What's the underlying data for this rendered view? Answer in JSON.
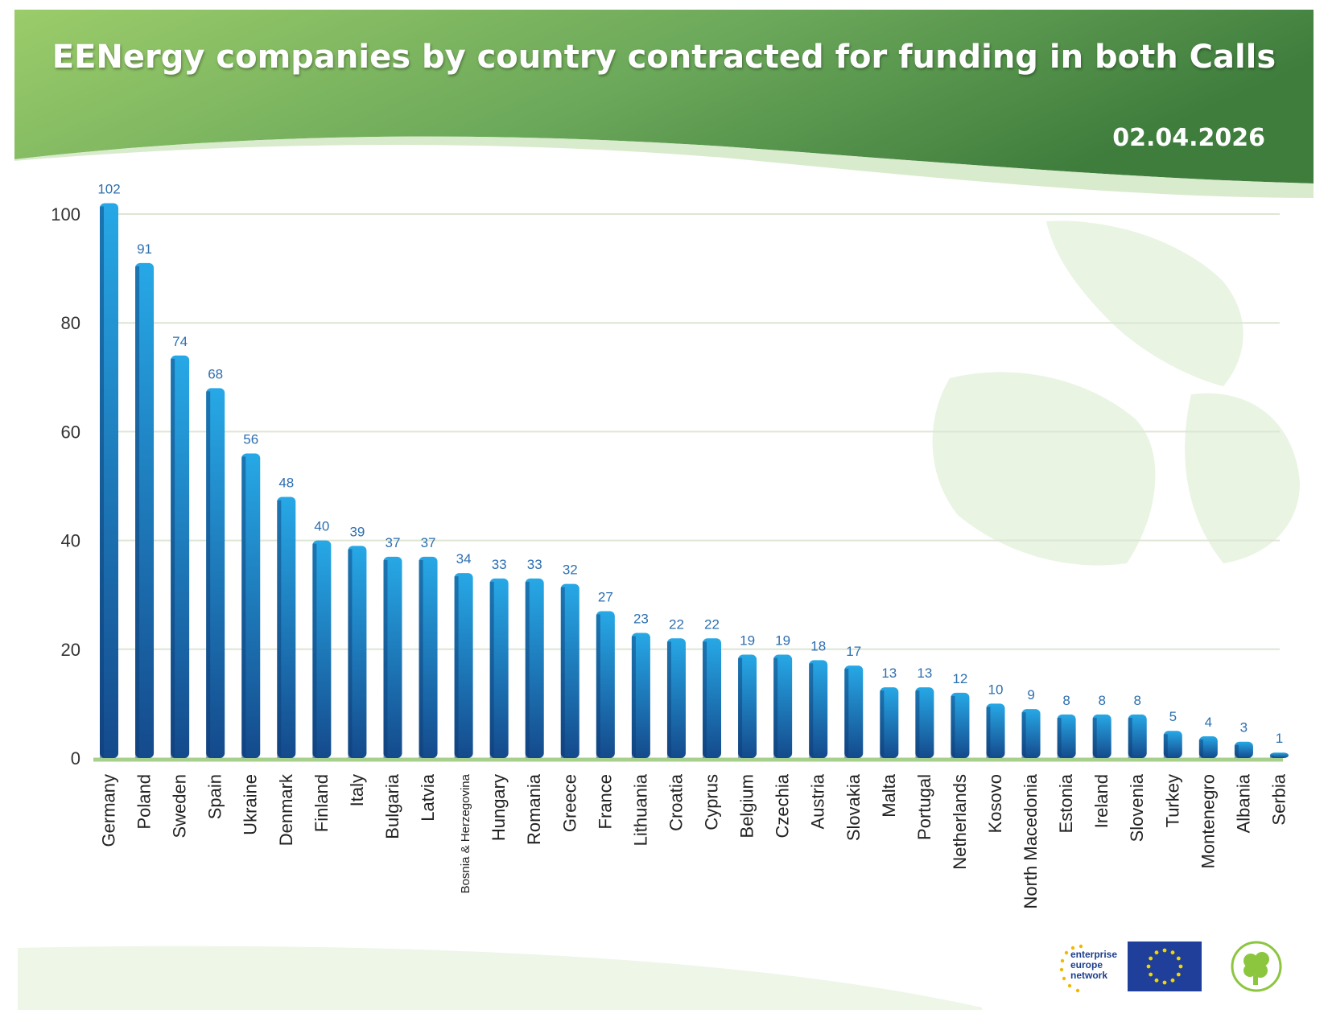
{
  "header": {
    "title": "EENergy companies by country contracted for funding in both Calls",
    "date": "02.04.2026"
  },
  "colors": {
    "header_light": "#9bcc6a",
    "header_dark": "#3f7d3d",
    "bar_top": "#27a8e6",
    "bar_bottom": "#144a8c",
    "value_label": "#2d6fb0",
    "baseline": "#a8d08d",
    "leaf": "#e6f2df"
  },
  "logos": {
    "een_text": [
      "enterprise",
      "europe",
      "network"
    ],
    "een_icon": "een-stars-logo-icon",
    "eu_flag_icon": "eu-flag-icon",
    "project_icon": "clover-plug-icon"
  },
  "chart_data": {
    "type": "bar",
    "title": "EENergy companies by country contracted for funding in both Calls",
    "xlabel": "",
    "ylabel": "",
    "ylim": [
      0,
      102
    ],
    "yticks": [
      0,
      20,
      40,
      60,
      80,
      100
    ],
    "grid": true,
    "legend": "none",
    "categories": [
      "Germany",
      "Poland",
      "Sweden",
      "Spain",
      "Ukraine",
      "Denmark",
      "Finland",
      "Italy",
      "Bulgaria",
      "Latvia",
      "Bosnia & Herzegovina",
      "Hungary",
      "Romania",
      "Greece",
      "France",
      "Lithuania",
      "Croatia",
      "Cyprus",
      "Belgium",
      "Czechia",
      "Austria",
      "Slovakia",
      "Malta",
      "Portugal",
      "Netherlands",
      "Kosovo",
      "North Macedonia",
      "Estonia",
      "Ireland",
      "Slovenia",
      "Turkey",
      "Montenegro",
      "Albania",
      "Serbia"
    ],
    "values": [
      102,
      91,
      74,
      68,
      56,
      48,
      40,
      39,
      37,
      37,
      34,
      33,
      33,
      32,
      27,
      23,
      22,
      22,
      19,
      19,
      18,
      17,
      13,
      13,
      12,
      10,
      9,
      8,
      8,
      8,
      5,
      4,
      3,
      1
    ]
  }
}
